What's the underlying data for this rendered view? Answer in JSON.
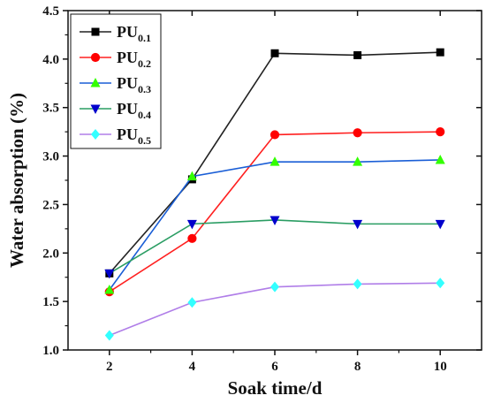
{
  "chart_data": {
    "type": "line",
    "xlabel": "Soak time/d",
    "ylabel": "Water absorption (%)",
    "x": [
      2,
      4,
      6,
      8,
      10
    ],
    "xlim": [
      1,
      11
    ],
    "ylim": [
      1.0,
      4.5
    ],
    "xticks": [
      "2",
      "4",
      "6",
      "8",
      "10"
    ],
    "yticks": [
      "1.0",
      "1.5",
      "2.0",
      "2.5",
      "3.0",
      "3.5",
      "4.0",
      "4.5"
    ],
    "grid": false,
    "legend_position": "top-left",
    "series": [
      {
        "name": "PU",
        "sub": "0.1",
        "color": "#222222",
        "marker": "square",
        "values": [
          1.79,
          2.76,
          4.06,
          4.04,
          4.07
        ]
      },
      {
        "name": "PU",
        "sub": "0.2",
        "color": "#ff2020",
        "marker": "circle",
        "values": [
          1.6,
          2.15,
          3.22,
          3.24,
          3.25
        ]
      },
      {
        "name": "PU",
        "sub": "0.3",
        "color": "#1a5ed6",
        "marker": "triangle-up",
        "values": [
          1.62,
          2.79,
          2.94,
          2.94,
          2.96
        ]
      },
      {
        "name": "PU",
        "sub": "0.4",
        "color": "#2a9d63",
        "marker": "triangle-down",
        "values": [
          1.79,
          2.3,
          2.34,
          2.3,
          2.3
        ]
      },
      {
        "name": "PU",
        "sub": "0.5",
        "color": "#b07ee8",
        "marker": "diamond",
        "values": [
          1.15,
          1.49,
          1.65,
          1.68,
          1.69
        ]
      }
    ],
    "marker_fills": [
      "#000000",
      "#ff0000",
      "#33ff00",
      "#0000cc",
      "#33ffff"
    ]
  }
}
